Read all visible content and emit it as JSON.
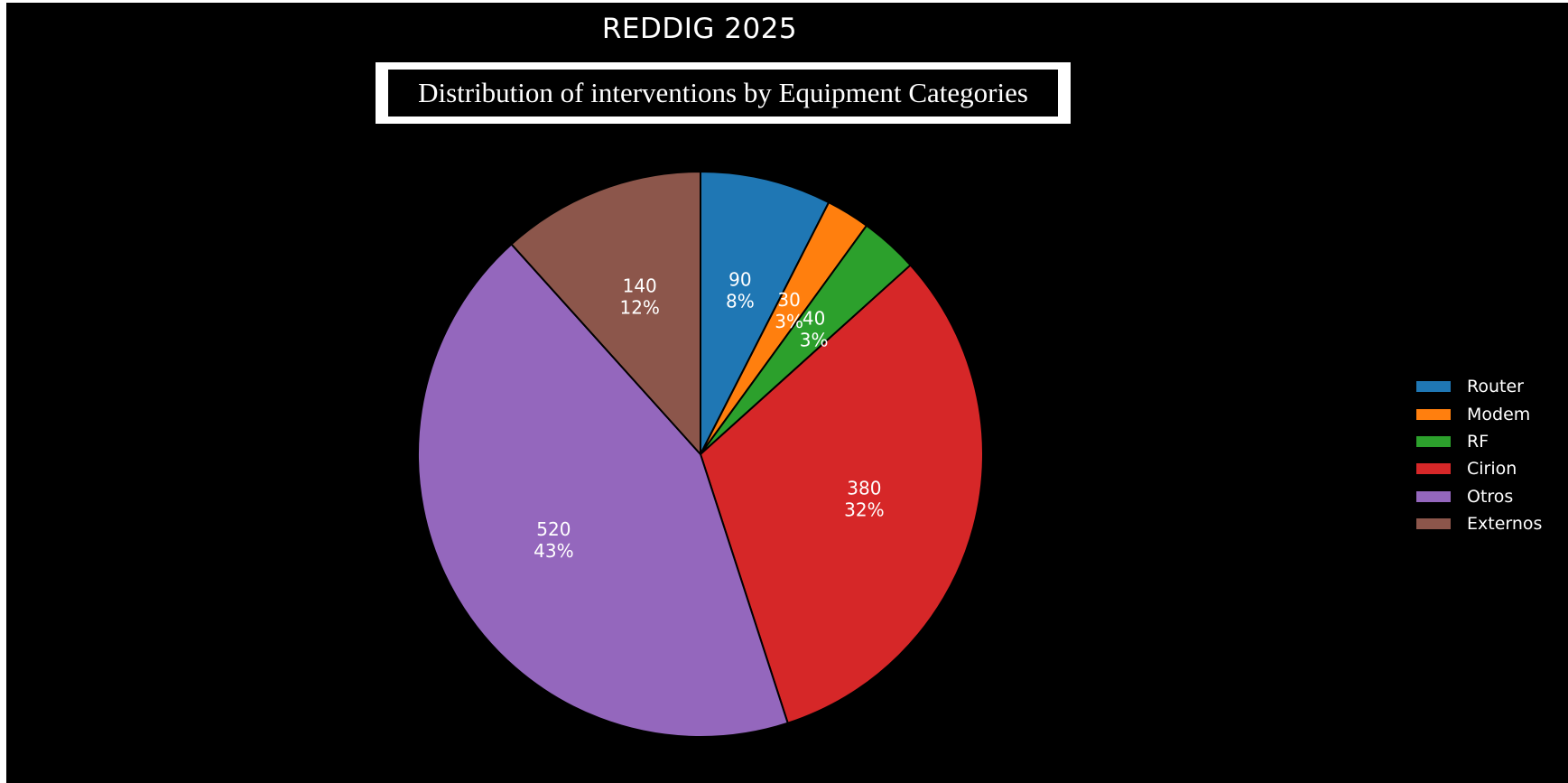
{
  "chart_data": {
    "type": "pie",
    "title": "REDDIG 2025",
    "subtitle": "Distribution of interventions by Equipment Categories",
    "categories": [
      "Router",
      "Modem",
      "RF",
      "Cirion",
      "Otros",
      "Externos"
    ],
    "values": [
      90,
      30,
      40,
      380,
      520,
      140
    ],
    "percent_labels": [
      "8%",
      "3%",
      "3%",
      "32%",
      "43%",
      "12%"
    ],
    "colors": [
      "#1f77b4",
      "#ff7f0e",
      "#2ca02c",
      "#d62728",
      "#9467bd",
      "#8c564b"
    ],
    "start_angle_deg": 90,
    "direction": "clockwise",
    "legend_position": "right",
    "background": "#000000",
    "edge_color": "#000000"
  }
}
